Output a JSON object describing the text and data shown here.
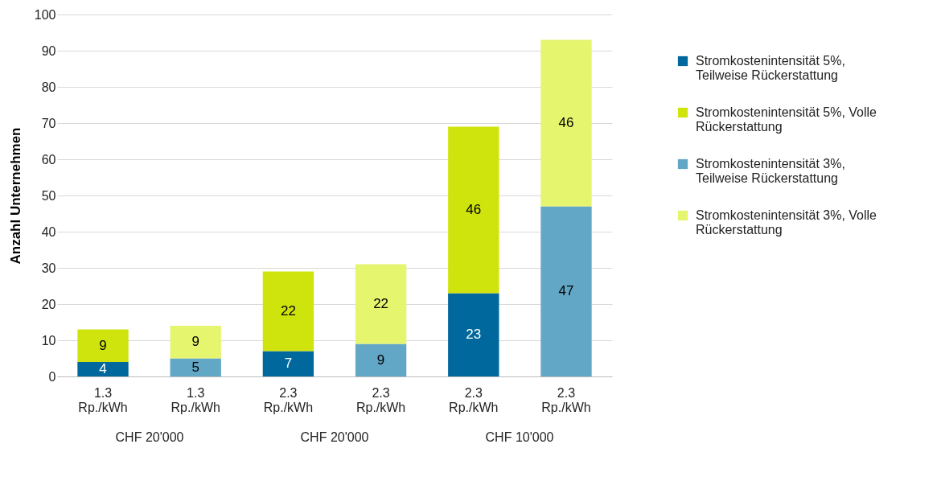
{
  "chart_data": {
    "type": "bar",
    "stacked": true,
    "ylabel": "Anzahl Unternehmen",
    "categories": [
      "1.3 Rp./kWh",
      "1.3 Rp./kWh",
      "2.3 Rp./kWh",
      "2.3 Rp./kWh",
      "2.3 Rp./kWh",
      "2.3 Rp./kWh"
    ],
    "series": [
      {
        "name": "Stromkostenintensität 5%, Teilweise Rückerstattung",
        "color": "#00689d",
        "values": [
          4,
          null,
          7,
          null,
          23,
          null
        ]
      },
      {
        "name": "Stromkostenintensität 5%, Volle Rückerstattung",
        "color": "#cfe40c",
        "values": [
          9,
          null,
          22,
          null,
          46,
          null
        ]
      },
      {
        "name": "Stromkostenintensität 3%, Teilweise Rückerstattung",
        "color": "#63a7c7",
        "values": [
          null,
          5,
          null,
          9,
          null,
          47
        ]
      },
      {
        "name": "Stromkostenintensität 3%, Volle Rückerstattung",
        "color": "#e5f56e",
        "values": [
          null,
          9,
          null,
          22,
          null,
          46
        ]
      }
    ],
    "annotations": [
      "CHF 20'000",
      "CHF 20'000",
      "CHF 10'000"
    ],
    "ylim": [
      0,
      100
    ],
    "yticks": [
      0,
      10,
      20,
      30,
      40,
      50,
      60,
      70,
      80,
      90,
      100
    ],
    "grid": "y",
    "legend": "right",
    "data_labels": true
  }
}
